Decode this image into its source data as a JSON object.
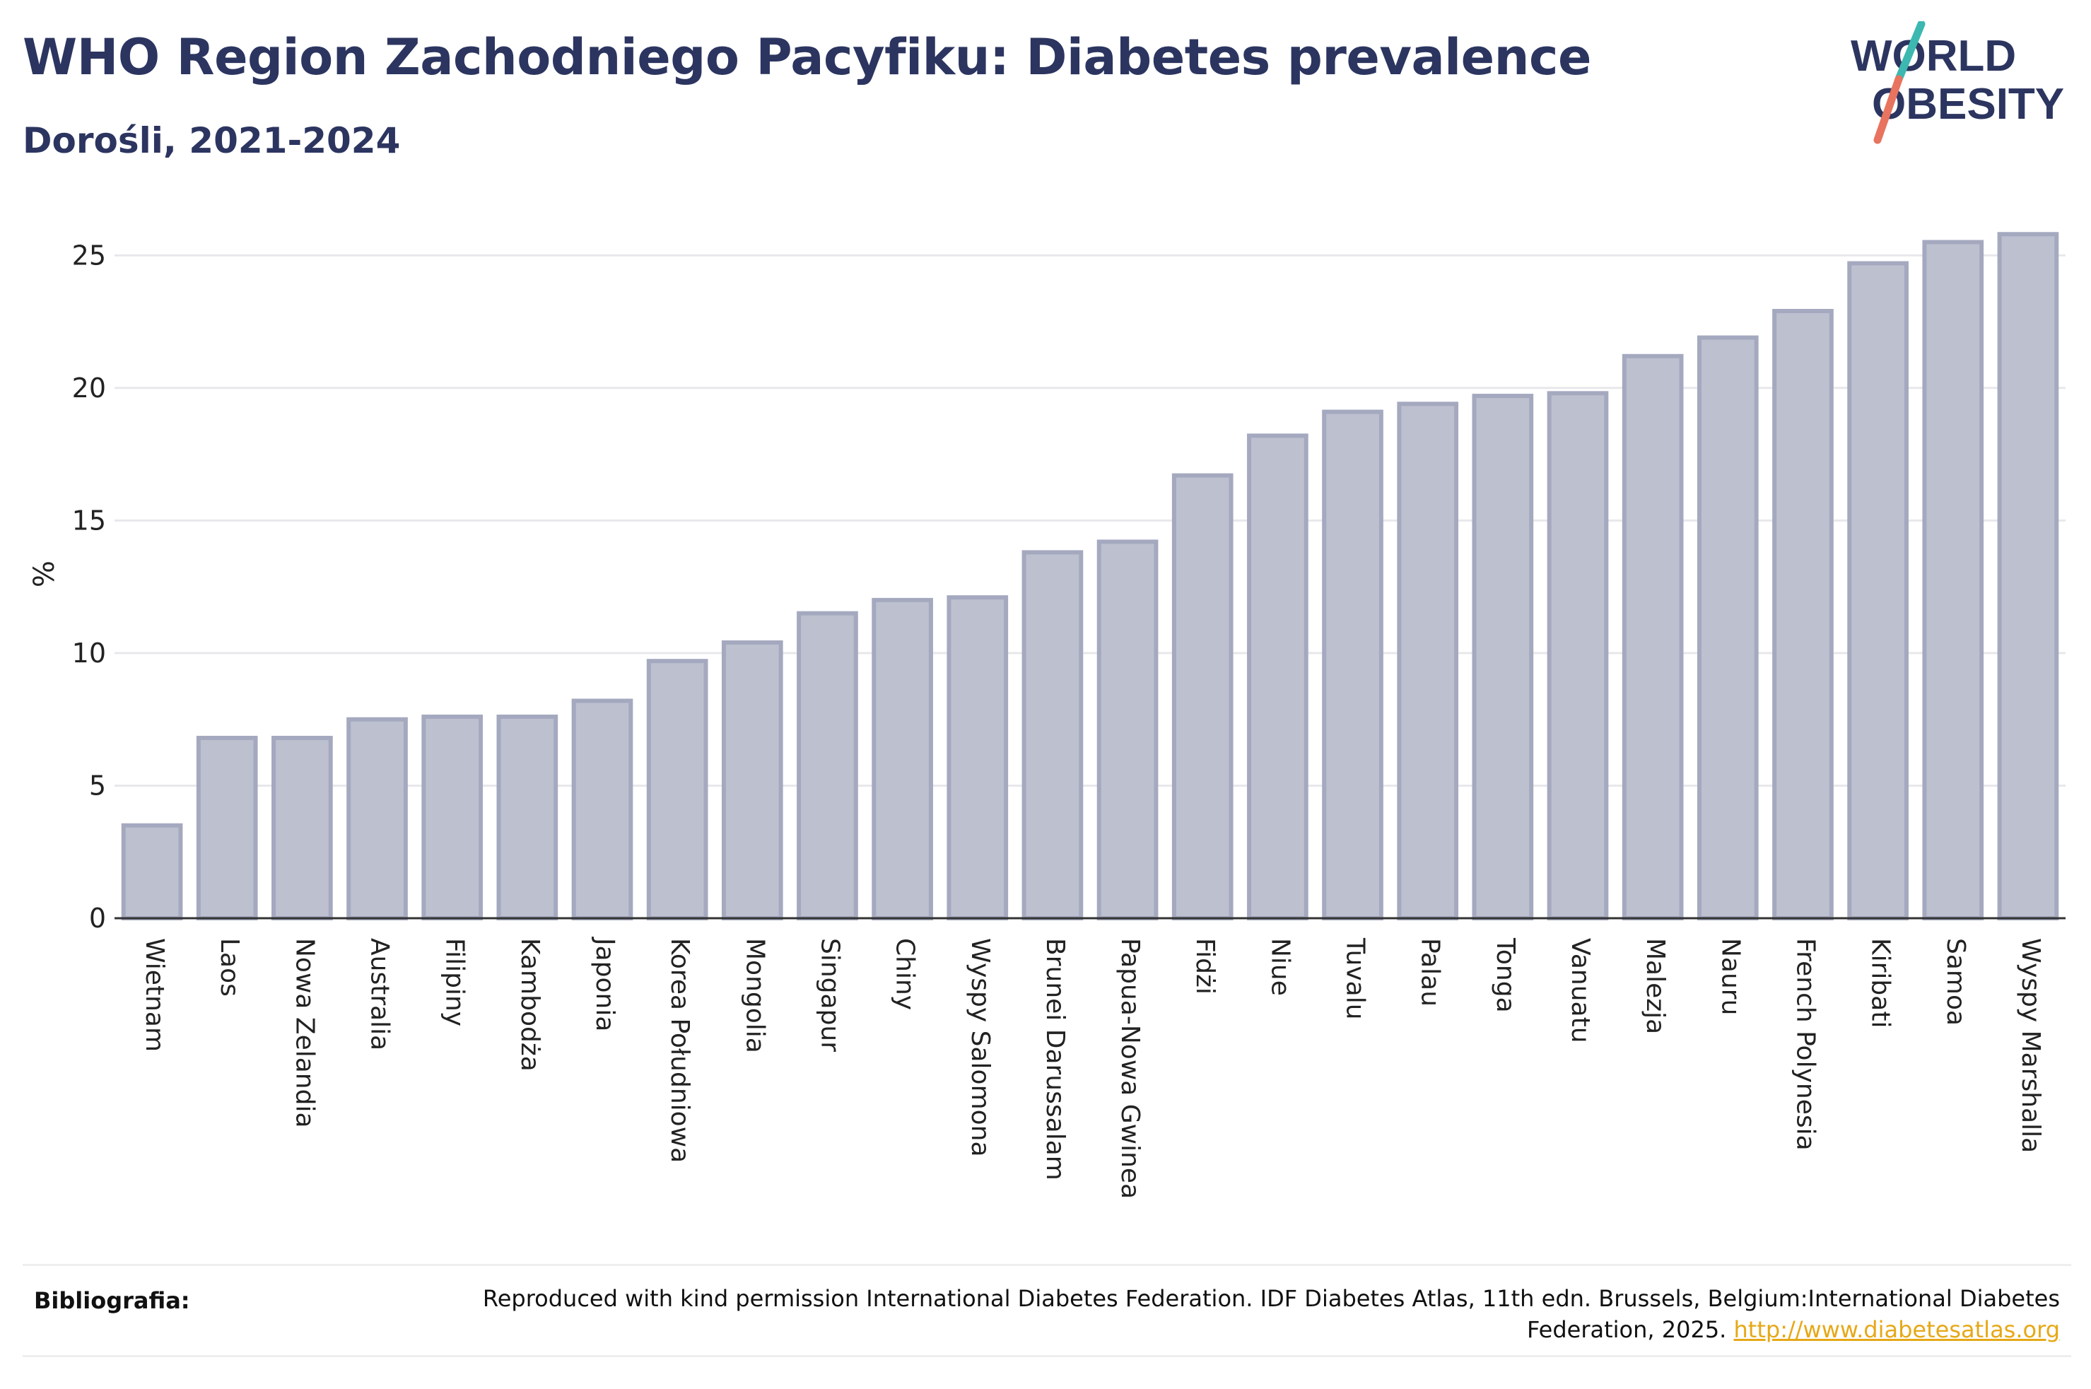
{
  "header": {
    "title": "WHO Region Zachodniego Pacyfiku: Diabetes prevalence",
    "subtitle": "Dorośli, 2021-2024"
  },
  "logo": {
    "line1": "WORLD",
    "line2": "OBESITY",
    "colors": {
      "text": "#2c3560",
      "slash_top": "#3cb8b0",
      "slash_bottom": "#e8735f"
    }
  },
  "chart_data": {
    "type": "bar",
    "title": "",
    "xlabel": "",
    "ylabel": "%",
    "ylim": [
      0,
      26.5
    ],
    "yticks": [
      0,
      5,
      10,
      15,
      20,
      25
    ],
    "grid": true,
    "bar_color": "#bdc0cf",
    "bar_edge_color": "#a5a9bf",
    "categories": [
      "Wietnam",
      "Laos",
      "Nowa Zelandia",
      "Australia",
      "Filipiny",
      "Kambodża",
      "Japonia",
      "Korea Południowa",
      "Mongolia",
      "Singapur",
      "Chiny",
      "Wyspy Salomona",
      "Brunei Darussalam",
      "Papua-Nowa Gwinea",
      "Fidżi",
      "Niue",
      "Tuvalu",
      "Palau",
      "Tonga",
      "Vanuatu",
      "Malezja",
      "Nauru",
      "French Polynesia",
      "Kiribati",
      "Samoa",
      "Wyspy Marshalla"
    ],
    "values": [
      3.5,
      6.8,
      6.8,
      7.5,
      7.6,
      7.6,
      8.2,
      9.7,
      10.4,
      11.5,
      12.0,
      12.1,
      13.8,
      14.2,
      16.7,
      18.2,
      19.1,
      19.4,
      19.7,
      19.8,
      21.2,
      21.9,
      22.9,
      24.7,
      25.5,
      25.8
    ]
  },
  "footer": {
    "label": "Bibliografia:",
    "text": "Reproduced with kind permission International Diabetes Federation. IDF Diabetes Atlas, 11th edn. Brussels, Belgium:International Diabetes Federation, 2025. ",
    "link": "http://www.diabetesatlas.org"
  }
}
